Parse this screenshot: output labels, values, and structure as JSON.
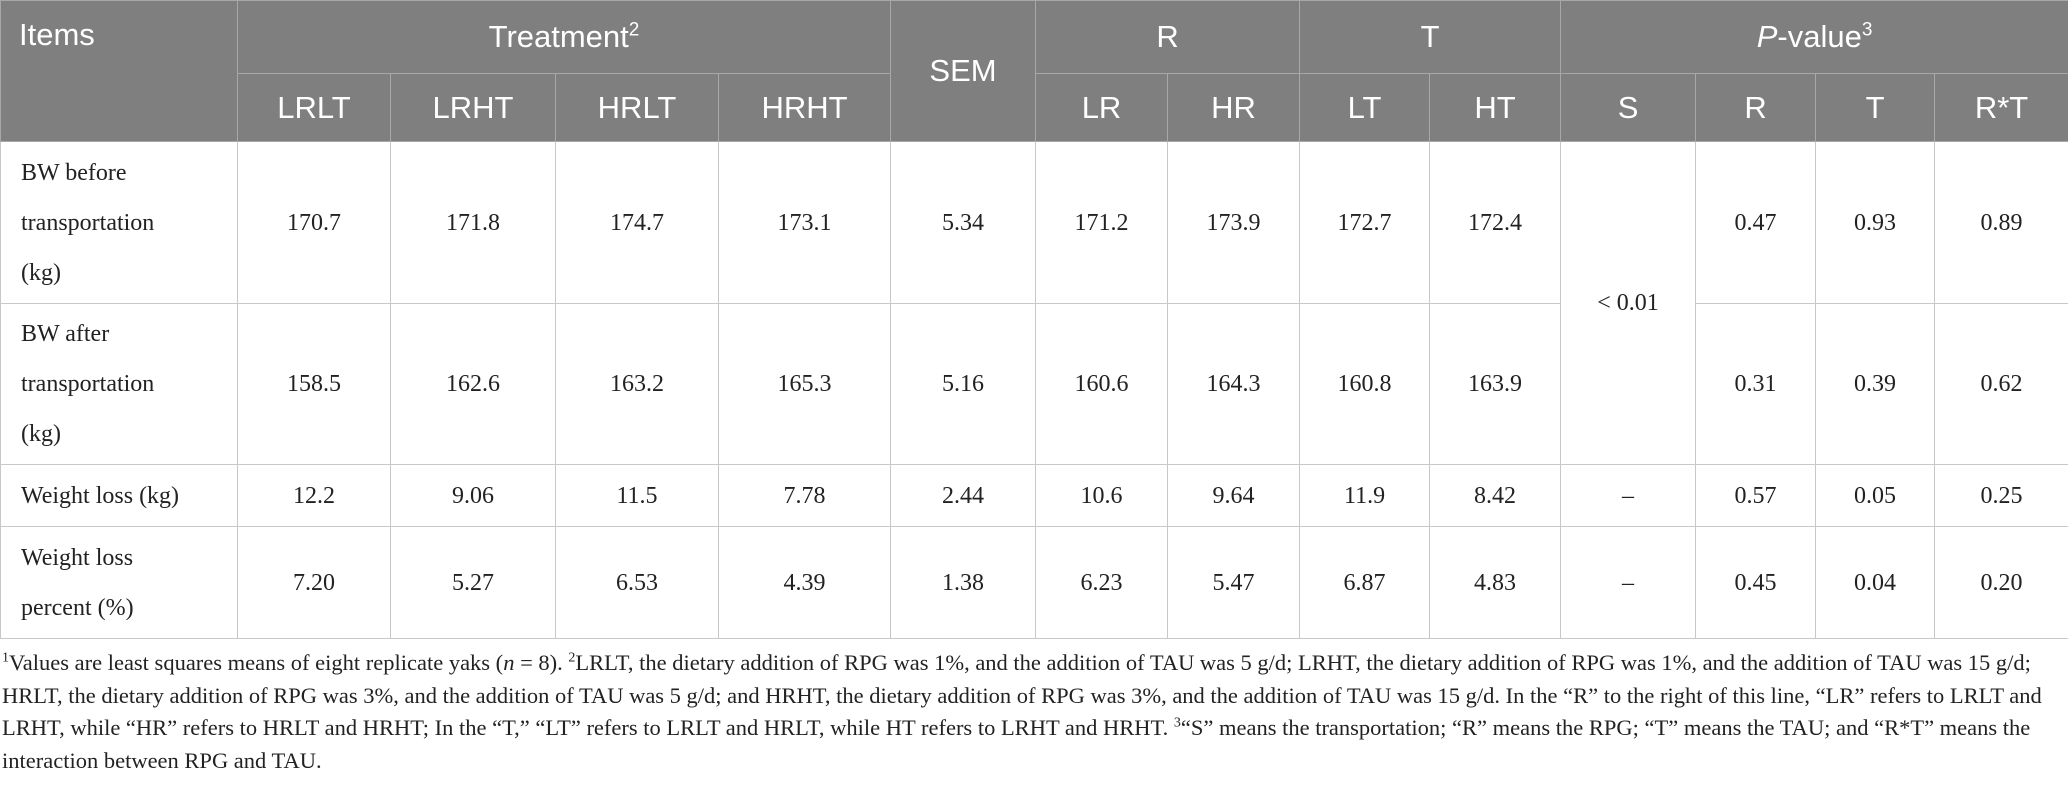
{
  "table": {
    "header_top": [
      {
        "text": "Items"
      },
      {
        "text": "Treatment",
        "sup": "2"
      },
      {
        "text": "SEM"
      },
      {
        "text": "R"
      },
      {
        "text": "T"
      },
      {
        "italic": "P",
        "text": "-value",
        "sup": "3"
      }
    ],
    "header_sub": [
      "LRLT",
      "LRHT",
      "HRLT",
      "HRHT",
      "LR",
      "HR",
      "LT",
      "HT",
      "S",
      "R",
      "T",
      "R*T"
    ],
    "rows": [
      {
        "label_lines": [
          "BW before",
          "transportation",
          "(kg)"
        ],
        "values": [
          "170.7",
          "171.8",
          "174.7",
          "173.1",
          "5.34",
          "171.2",
          "173.9",
          "172.7",
          "172.4"
        ],
        "p_values": [
          "0.47",
          "0.93",
          "0.89"
        ]
      },
      {
        "label_lines": [
          "BW after",
          "transportation",
          "(kg)"
        ],
        "values": [
          "158.5",
          "162.6",
          "163.2",
          "165.3",
          "5.16",
          "160.6",
          "164.3",
          "160.8",
          "163.9"
        ],
        "p_values": [
          "0.31",
          "0.39",
          "0.62"
        ]
      },
      {
        "label_lines": [
          "Weight loss (kg)"
        ],
        "values": [
          "12.2",
          "9.06",
          "11.5",
          "7.78",
          "2.44",
          "10.6",
          "9.64",
          "11.9",
          "8.42"
        ],
        "p_values": [
          "0.57",
          "0.05",
          "0.25"
        ]
      },
      {
        "label_lines": [
          "Weight loss",
          "percent (%)"
        ],
        "values": [
          "7.20",
          "5.27",
          "6.53",
          "4.39",
          "1.38",
          "6.23",
          "5.47",
          "6.87",
          "4.83"
        ],
        "p_values": [
          "0.45",
          "0.04",
          "0.20"
        ]
      }
    ],
    "s_values": [
      "< 0.01",
      "–",
      "–"
    ]
  },
  "footnote": [
    {
      "text": "1",
      "style": "sup"
    },
    {
      "text": "Values are least squares means of eight replicate yaks ("
    },
    {
      "text": "n",
      "style": "italic"
    },
    {
      "text": " = 8). "
    },
    {
      "text": "2",
      "style": "sup"
    },
    {
      "text": "LRLT, the dietary addition of RPG was 1%, and the addition of TAU was 5 g/d; LRHT, the dietary addition of RPG was 1%, and the addition of TAU was 15 g/d; HRLT, the dietary addition of RPG was 3%, and the addition of TAU was 5 g/d; and HRHT, the dietary addition of RPG was 3%, and the addition of TAU was 15 g/d. In the “R” to the right of this line, “LR” refers to LRLT and LRHT, while “HR” refers to HRLT and HRHT; In the “T,” “LT” refers to LRLT and HRLT, while HT refers to LRHT and HRHT. "
    },
    {
      "text": "3",
      "style": "sup"
    },
    {
      "text": "“S” means the transportation; “R” means the RPG; “T” means the TAU; and “R*T” means the interaction between RPG and TAU."
    }
  ]
}
